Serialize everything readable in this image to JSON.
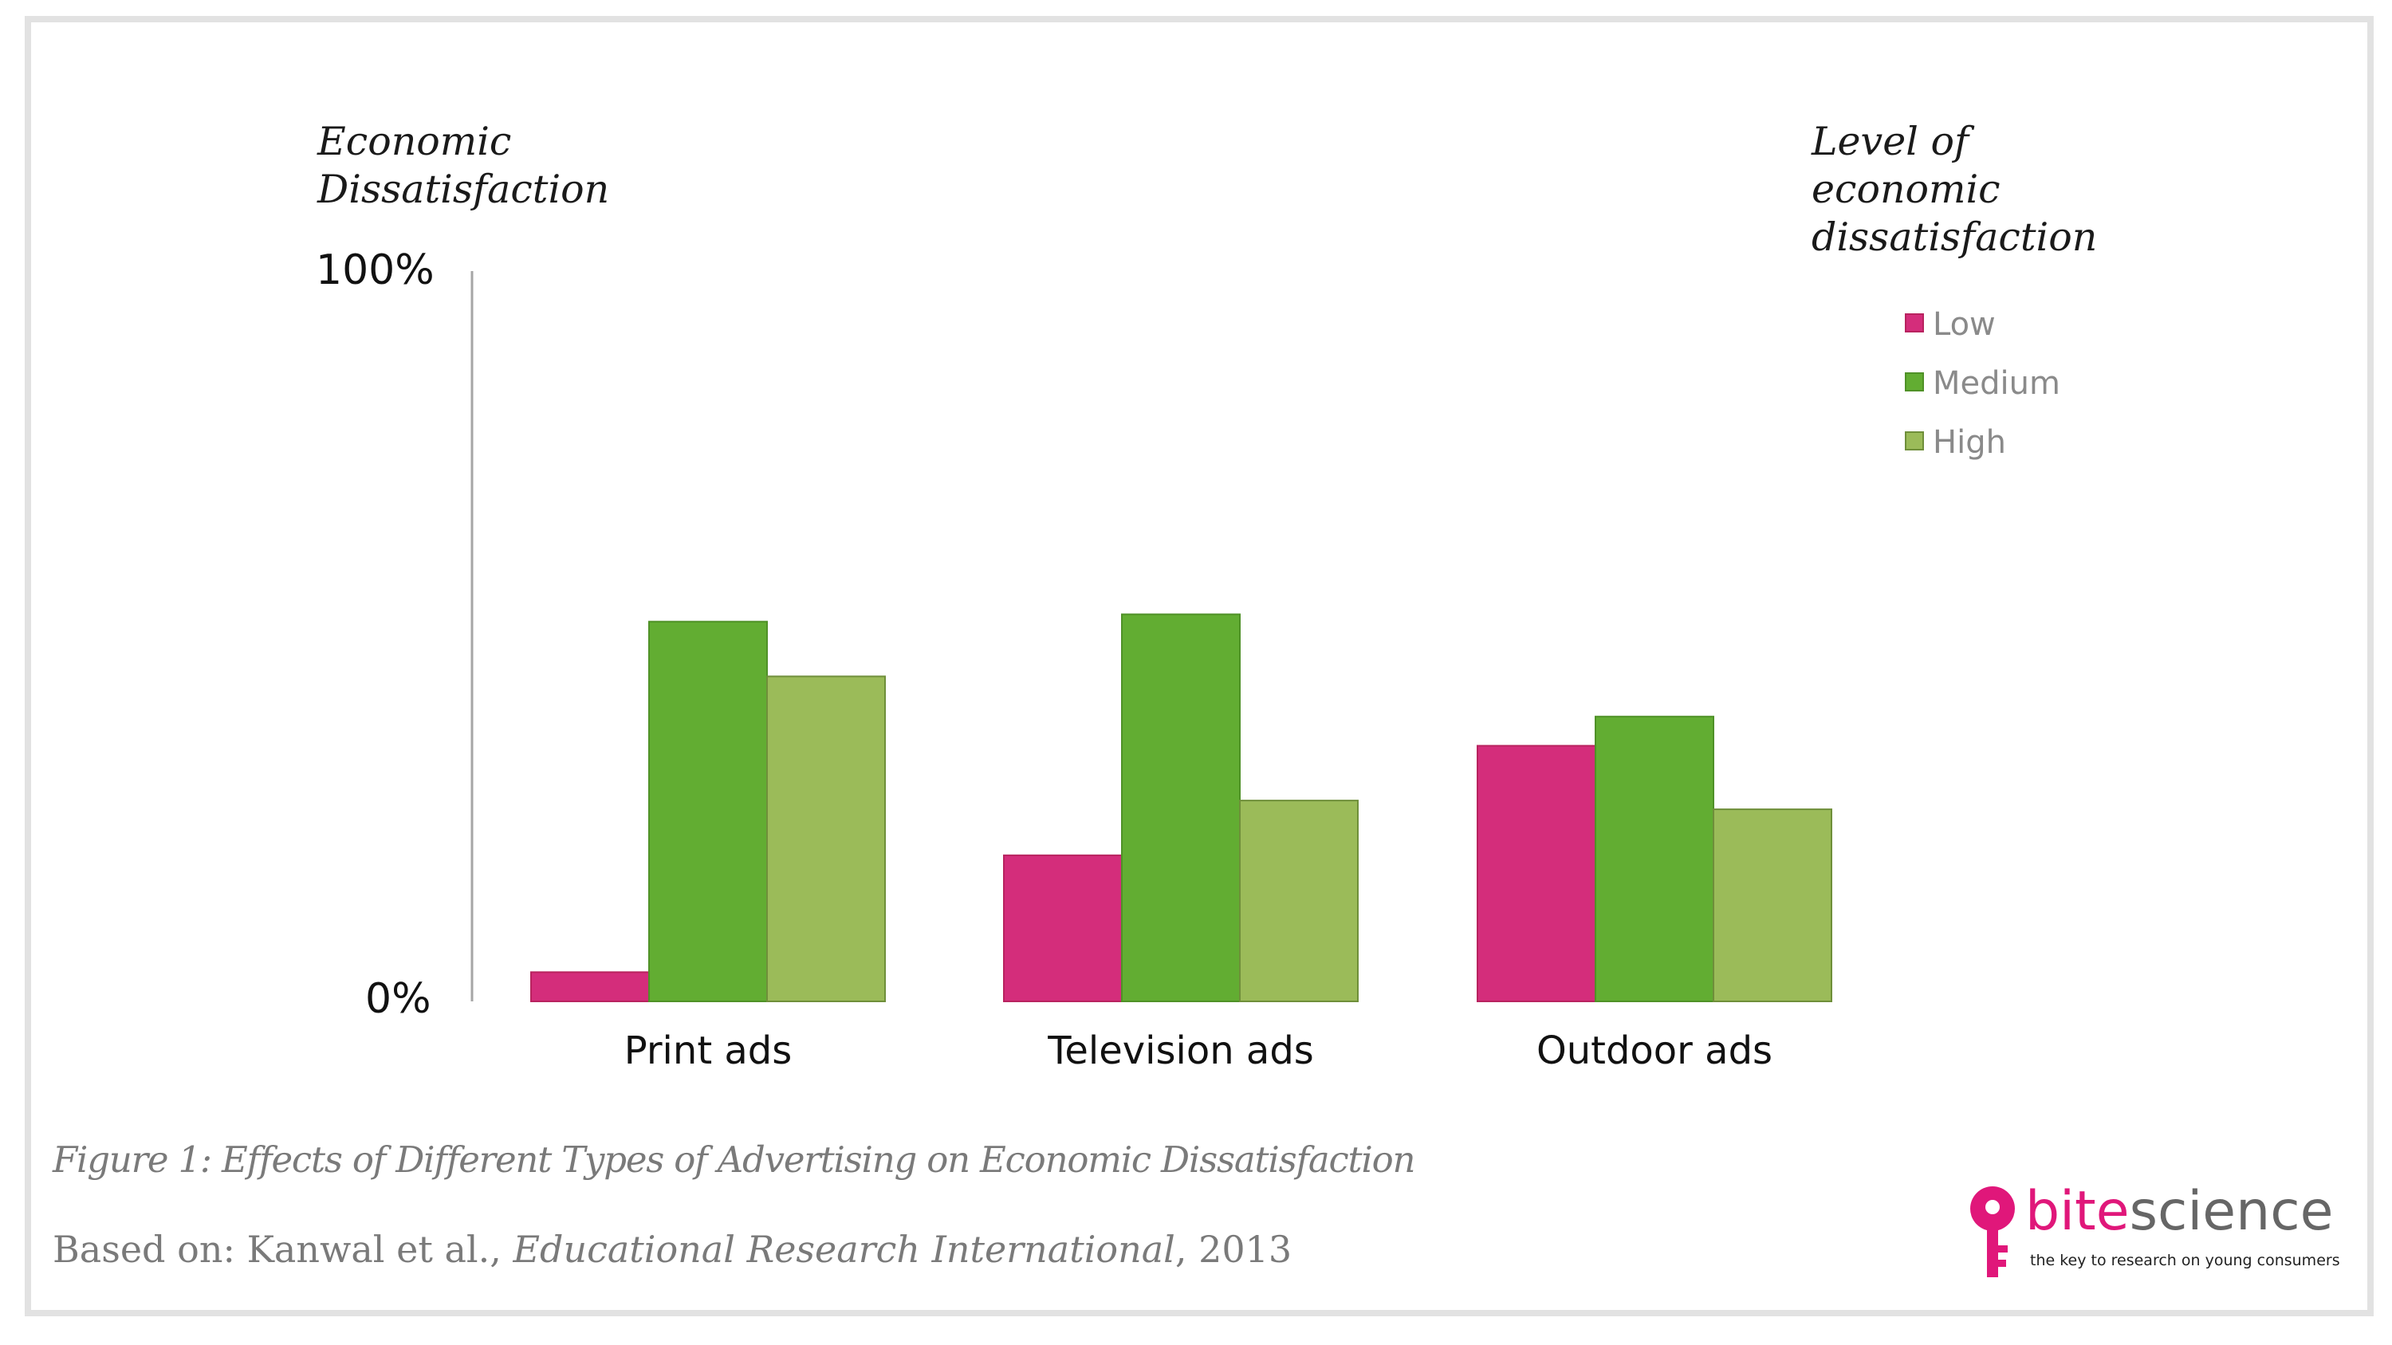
{
  "chart_data": {
    "type": "bar",
    "ylabel": "Economic\nDissatisfaction",
    "ylim": [
      0,
      100
    ],
    "yticks": [
      "0%",
      "100%"
    ],
    "categories": [
      "Print ads",
      "Television ads",
      "Outdoor ads"
    ],
    "legend_title": "Level of\neconomic\ndissatisfaction",
    "legend_position": "top-right",
    "grid": false,
    "series": [
      {
        "name": "Low",
        "values": [
          4,
          20,
          35
        ],
        "color": "#d42d7b"
      },
      {
        "name": "Medium",
        "values": [
          52,
          53,
          39
        ],
        "color": "#62ad32"
      },
      {
        "name": "High",
        "values": [
          44.5,
          27.5,
          26.3
        ],
        "color": "#9bbb59"
      }
    ]
  },
  "caption": "Figure 1: Effects of Different Types of Advertising on Economic Dissatisfaction",
  "source": {
    "prefix": "Based on:  Kanwal et al., ",
    "journal": "Educational Research International",
    "suffix": ", 2013"
  },
  "logo": {
    "bite": "bite",
    "science": "science",
    "tagline": "the key to research on young consumers",
    "accent_color": "#e0177a"
  }
}
